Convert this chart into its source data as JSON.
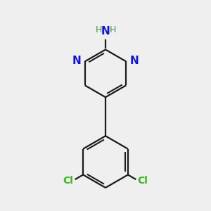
{
  "bg_color": "#efefef",
  "bond_color": "#1a1a1a",
  "n_color": "#1414cc",
  "cl_color": "#3ab520",
  "h_color": "#4a8a4a",
  "line_width": 1.6,
  "font_size_N": 11,
  "font_size_Cl": 10,
  "font_size_H": 9,
  "xlim": [
    0,
    10
  ],
  "ylim": [
    0,
    10
  ]
}
